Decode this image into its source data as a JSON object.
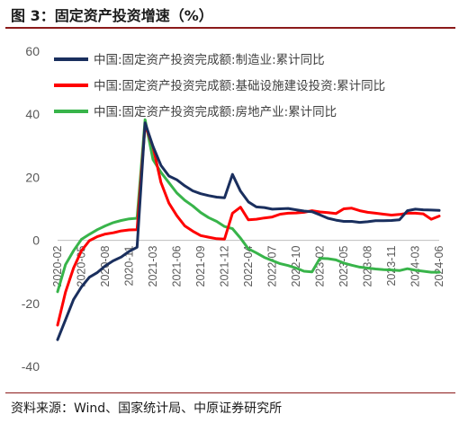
{
  "figure_title": "图 3：固定资产投资增速（%）",
  "source_note": "资料来源：Wind、国家统计局、中原证券研究所",
  "colors": {
    "manufacturing": "#1a2f5e",
    "infrastructure": "#ff0000",
    "real_estate": "#38b44a",
    "rule": "#8b1a1a"
  },
  "chart_data": {
    "type": "line",
    "title": "",
    "xlabel": "",
    "ylabel": "",
    "ylim": [
      -40,
      60
    ],
    "yticks": [
      -40,
      -20,
      0,
      20,
      40,
      60
    ],
    "grid": false,
    "legend_position": "top",
    "x": [
      "2020-02",
      "2020-03",
      "2020-04",
      "2020-05",
      "2020-06",
      "2020-07",
      "2020-08",
      "2020-09",
      "2020-10",
      "2020-11",
      "2020-12",
      "2021-02",
      "2021-03",
      "2021-04",
      "2021-05",
      "2021-06",
      "2021-07",
      "2021-08",
      "2021-09",
      "2021-10",
      "2021-11",
      "2021-12",
      "2022-02",
      "2022-03",
      "2022-04",
      "2022-05",
      "2022-06",
      "2022-07",
      "2022-08",
      "2022-09",
      "2022-10",
      "2022-11",
      "2022-12",
      "2023-02",
      "2023-03",
      "2023-04",
      "2023-05",
      "2023-06",
      "2023-07",
      "2023-08",
      "2023-09",
      "2023-10",
      "2023-11",
      "2023-12",
      "2024-02",
      "2024-03",
      "2024-04",
      "2024-05",
      "2024-06"
    ],
    "xtick_labels": [
      "2020-02",
      "2020-05",
      "2020-08",
      "2020-11",
      "2021-03",
      "2021-06",
      "2021-09",
      "2021-12",
      "2022-04",
      "2022-07",
      "2022-10",
      "2023-02",
      "2023-05",
      "2023-08",
      "2023-11",
      "2024-03",
      "2024-06"
    ],
    "series": [
      {
        "name": "中国:固定资产投资完成额:制造业:累计同比",
        "key": "manufacturing",
        "values": [
          -31.5,
          -25.2,
          -18.8,
          -14.8,
          -11.7,
          -10.2,
          -8.1,
          -6.5,
          -5.3,
          -3.5,
          -2.2,
          37.3,
          29.8,
          23.8,
          20.4,
          19.2,
          17.3,
          15.7,
          14.8,
          14.2,
          13.7,
          13.5,
          20.9,
          15.6,
          12.2,
          10.6,
          10.4,
          9.9,
          10.0,
          10.1,
          9.7,
          9.3,
          9.1,
          8.1,
          7.0,
          6.4,
          6.0,
          6.0,
          5.7,
          5.9,
          6.2,
          6.2,
          6.3,
          6.5,
          9.4,
          9.9,
          9.7,
          9.6,
          9.5
        ]
      },
      {
        "name": "中国:固定资产投资完成额:基础设施建设投资:累计同比",
        "key": "infrastructure",
        "values": [
          -26.9,
          -16.4,
          -8.8,
          -3.3,
          -0.1,
          1.2,
          2.0,
          2.4,
          3.0,
          3.3,
          3.4,
          36.6,
          29.7,
          18.4,
          11.8,
          7.8,
          4.6,
          2.9,
          1.5,
          1.0,
          0.5,
          0.4,
          8.6,
          10.5,
          6.5,
          6.7,
          7.1,
          7.4,
          8.3,
          8.6,
          8.7,
          8.9,
          9.4,
          9.0,
          8.8,
          8.5,
          10.0,
          10.2,
          9.4,
          8.9,
          8.6,
          8.3,
          8.0,
          8.2,
          8.6,
          8.6,
          8.4,
          6.7,
          7.7
        ]
      },
      {
        "name": "中国:固定资产投资完成额:房地产业:累计同比",
        "key": "real_estate",
        "values": [
          -16.3,
          -7.7,
          -3.3,
          0.3,
          1.9,
          3.4,
          4.6,
          5.6,
          6.3,
          6.8,
          7.0,
          38.3,
          25.6,
          21.6,
          18.3,
          15.0,
          12.7,
          10.9,
          8.8,
          7.2,
          6.0,
          4.4,
          3.7,
          0.7,
          -2.7,
          -4.0,
          -5.4,
          -6.4,
          -7.4,
          -8.0,
          -8.8,
          -9.8,
          -10.0,
          -5.7,
          -5.8,
          -6.2,
          -7.2,
          -7.9,
          -8.5,
          -8.8,
          -9.1,
          -9.3,
          -9.4,
          -9.6,
          -9.0,
          -9.5,
          -9.8,
          -10.1,
          -10.1
        ]
      }
    ]
  }
}
